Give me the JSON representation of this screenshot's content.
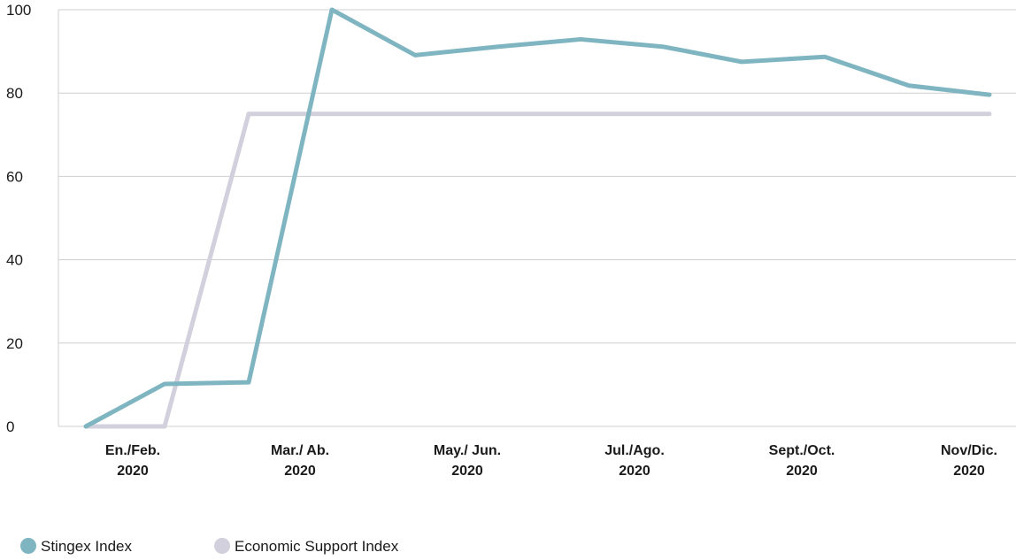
{
  "chart_data": {
    "type": "line",
    "title": "",
    "xlabel": "",
    "ylabel": "",
    "ylim": [
      0,
      100
    ],
    "yticks": [
      0,
      20,
      40,
      60,
      80,
      100
    ],
    "grid": true,
    "legend_position": "bottom-left",
    "categories": [
      [
        "En./Feb.",
        "2020"
      ],
      [
        "Mar./ Ab.",
        "2020"
      ],
      [
        "May./ Jun.",
        "2020"
      ],
      [
        "Jul./Ago.",
        "2020"
      ],
      [
        "Sept./Oct.",
        "2020"
      ],
      [
        "Nov/Dic.",
        "2020"
      ]
    ],
    "x_months": [
      1,
      2,
      3,
      4,
      5,
      6,
      7,
      8,
      9,
      10,
      11,
      12
    ],
    "series": [
      {
        "name": "Stingex Index",
        "color": "#7fb5c1",
        "x": [
          1,
          2,
          3,
          4,
          5,
          6,
          7,
          8,
          9,
          10,
          11,
          12
        ],
        "values": [
          0,
          10.2,
          10.6,
          100,
          89.1,
          91.1,
          92.9,
          91.1,
          87.5,
          88.7,
          81.8,
          79.6
        ]
      },
      {
        "name": "Economic Support Index",
        "color": "#d1d0dc",
        "x": [
          1,
          2,
          3,
          12
        ],
        "values": [
          0,
          0,
          75,
          75
        ]
      }
    ]
  }
}
